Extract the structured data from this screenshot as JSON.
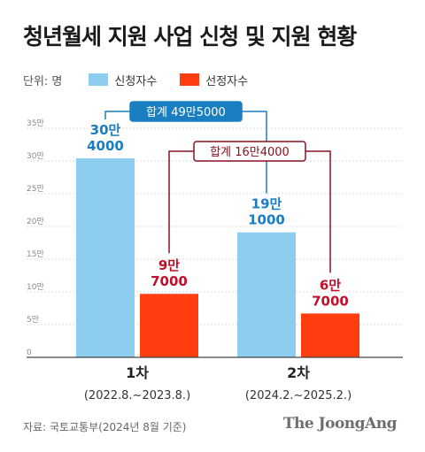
{
  "title": "청년월세 지원 사업 신청 및 지원 현황",
  "unit_label": "단위: 명",
  "source": "자료: 국토교통부(2024년 8월 기준)",
  "brand": "The JoongAng",
  "chart_data": {
    "type": "bar",
    "categories": [
      "1차",
      "2차"
    ],
    "category_periods": [
      "(2022.8.~2023.8.)",
      "(2024.2.~2025.2.)"
    ],
    "series": [
      {
        "name": "신청자수",
        "color": "#8ccdf0",
        "label_color": "#1a7fc0",
        "values": [
          304000,
          191000
        ],
        "labels": [
          [
            "30만",
            "4000"
          ],
          [
            "19만",
            "1000"
          ]
        ]
      },
      {
        "name": "선정자수",
        "color": "#ff3d0f",
        "label_color": "#c0102a",
        "values": [
          97000,
          67000
        ],
        "labels": [
          [
            "9만",
            "7000"
          ],
          [
            "6만",
            "7000"
          ]
        ]
      }
    ],
    "totals": [
      {
        "series": "신청자수",
        "label": "합계 49만5000",
        "value": 495000
      },
      {
        "series": "선정자수",
        "label": "합계 16만4000",
        "value": 164000
      }
    ],
    "ylim": [
      0,
      350000
    ],
    "yticks": [
      0,
      50000,
      100000,
      150000,
      200000,
      250000,
      300000,
      350000
    ],
    "ytick_labels": [
      "0",
      "5만",
      "10만",
      "15만",
      "20만",
      "25만",
      "30만",
      "35만"
    ],
    "grid": true,
    "legend_position": "top-left"
  }
}
